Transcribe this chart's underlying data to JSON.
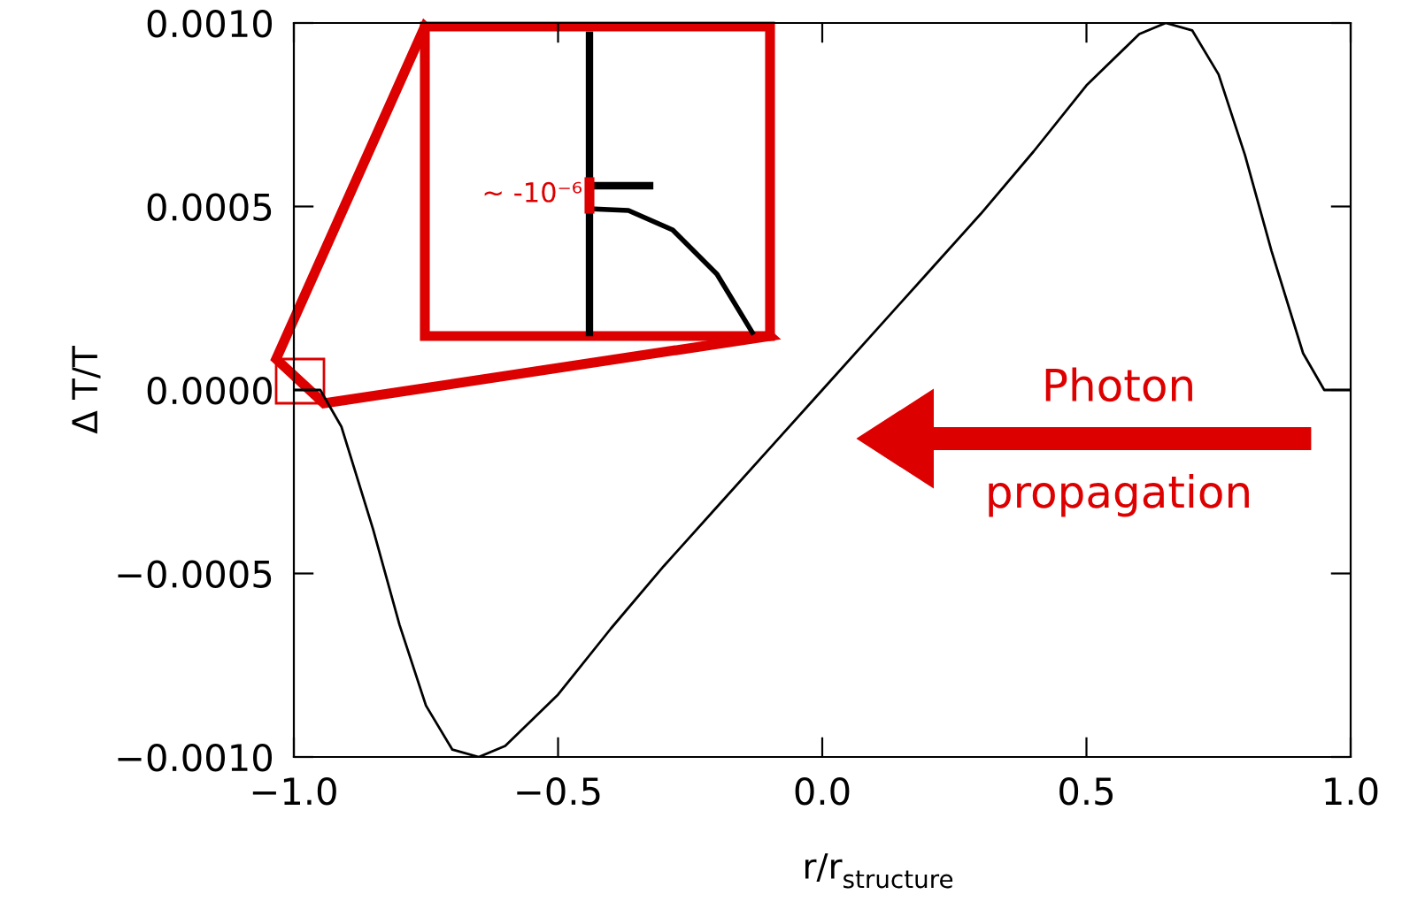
{
  "chart_data": {
    "type": "line",
    "xlabel": "r/r$_{structure}$",
    "ylabel": "Δ T/T",
    "x": [
      -1.0,
      -0.95,
      -0.91,
      -0.85,
      -0.8,
      -0.75,
      -0.7,
      -0.65,
      -0.6,
      -0.5,
      -0.4,
      -0.3,
      -0.2,
      -0.1,
      0.0,
      0.1,
      0.2,
      0.3,
      0.4,
      0.5,
      0.6,
      0.65,
      0.7,
      0.75,
      0.8,
      0.85,
      0.91,
      0.95,
      1.0
    ],
    "series": [
      {
        "color": "#000000",
        "values": [
          0.0,
          0.0,
          -0.0001,
          -0.00038,
          -0.00064,
          -0.00086,
          -0.00098,
          -0.001,
          -0.00097,
          -0.00083,
          -0.00065,
          -0.00048,
          -0.00032,
          -0.00016,
          0.0,
          0.00016,
          0.00032,
          0.00048,
          0.00065,
          0.00083,
          0.00097,
          0.001,
          0.00098,
          0.00086,
          0.00064,
          0.00038,
          0.0001,
          0.0,
          0.0
        ]
      }
    ],
    "xlim": [
      -1.0,
      1.0
    ],
    "xticks": [
      {
        "value": -1.0,
        "label": "−1.0"
      },
      {
        "value": -0.5,
        "label": "−0.5"
      },
      {
        "value": 0.0,
        "label": "0.0"
      },
      {
        "value": 0.5,
        "label": "0.5"
      },
      {
        "value": 1.0,
        "label": "1.0"
      }
    ],
    "ylim": [
      -0.001,
      0.001
    ],
    "yticks": [
      {
        "value": -0.001,
        "label": "−0.0010"
      },
      {
        "value": -0.0005,
        "label": "−0.0005"
      },
      {
        "value": 0.0,
        "label": "0.0000"
      },
      {
        "value": 0.0005,
        "label": "0.0005"
      },
      {
        "value": 0.001,
        "label": "0.0010"
      }
    ],
    "grid": false,
    "legend": false,
    "annotations": [
      "~ -10⁻⁶",
      "Photon\npropagation"
    ]
  }
}
